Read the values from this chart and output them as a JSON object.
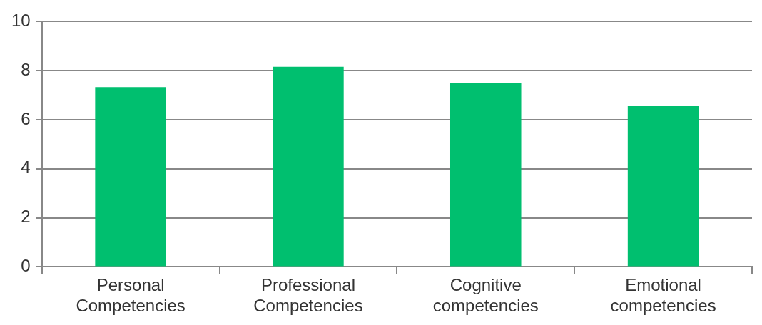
{
  "chart_data": {
    "type": "bar",
    "categories": [
      "Personal Competencies",
      "Professional Competencies",
      "Cognitive competencies",
      "Emotional competencies"
    ],
    "values": [
      7.33,
      8.16,
      7.5,
      6.55
    ],
    "color": "#00bf6f",
    "ylim": [
      0,
      10
    ],
    "yticks": [
      0,
      2,
      4,
      6,
      8,
      10
    ],
    "grid": "y",
    "legend": false
  }
}
